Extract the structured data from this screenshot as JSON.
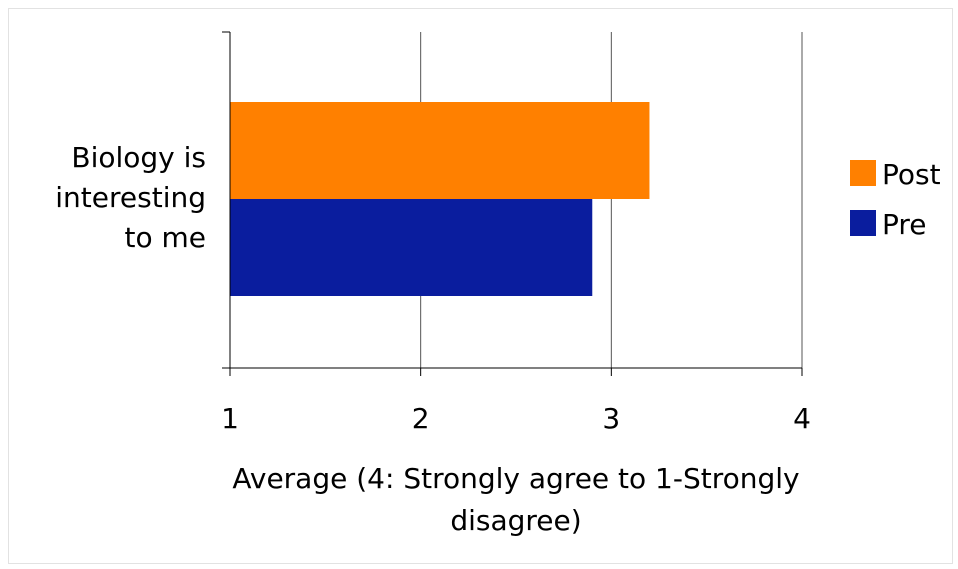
{
  "chart_data": {
    "type": "bar",
    "orientation": "horizontal",
    "categories": [
      "Biology is interesting to me"
    ],
    "category_lines": [
      "Biology is",
      "interesting",
      "to me"
    ],
    "series": [
      {
        "name": "Post",
        "values": [
          3.2
        ],
        "color": "#ff8000"
      },
      {
        "name": "Pre",
        "values": [
          2.9
        ],
        "color": "#0a1d9e"
      }
    ],
    "xlabel_lines": [
      "Average (4: Strongly agree to 1-Strongly",
      "disagree)"
    ],
    "ylabel": "",
    "xlim": [
      1,
      4
    ],
    "xticks": [
      1,
      2,
      3,
      4
    ],
    "grid": true,
    "legend": "right"
  }
}
